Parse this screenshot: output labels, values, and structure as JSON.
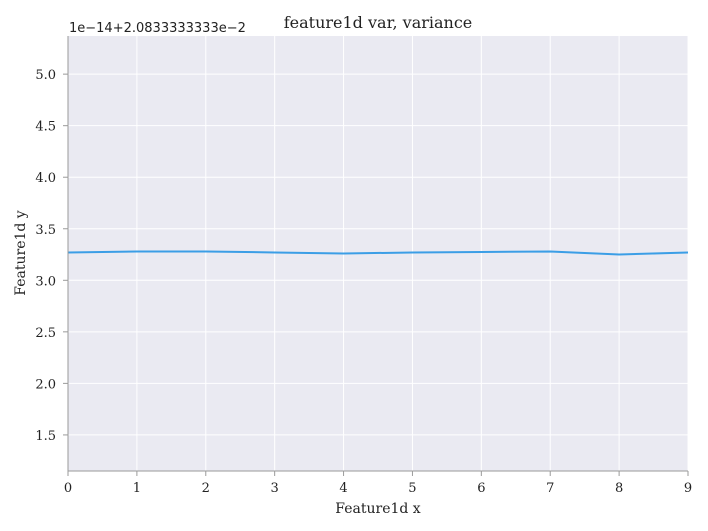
{
  "chart_data": {
    "type": "line",
    "title": "feature1d var, variance",
    "xlabel": "Feature1d x",
    "ylabel": "Feature1d y",
    "offset_label": "1e−14+2.0833333333e−2",
    "xlim": [
      0,
      9
    ],
    "ylim": [
      1.15,
      5.37
    ],
    "xticks": [
      0,
      1,
      2,
      3,
      4,
      5,
      6,
      7,
      8,
      9
    ],
    "xtick_labels": [
      "0",
      "1",
      "2",
      "3",
      "4",
      "5",
      "6",
      "7",
      "8",
      "9"
    ],
    "yticks": [
      1.5,
      2.0,
      2.5,
      3.0,
      3.5,
      4.0,
      4.5,
      5.0
    ],
    "ytick_labels": [
      "1.5",
      "2.0",
      "2.5",
      "3.0",
      "3.5",
      "4.0",
      "4.5",
      "5.0"
    ],
    "grid": true,
    "colors": {
      "plot_background": "#eaeaf2",
      "grid": "#ffffff",
      "line": "#3b9ee6",
      "axis": "#9a9a9a",
      "text": "#222222"
    },
    "series": [
      {
        "x": [
          0,
          1,
          2,
          3,
          4,
          5,
          6,
          7,
          8,
          9
        ],
        "y": [
          3.27,
          3.28,
          3.28,
          3.27,
          3.26,
          3.27,
          3.275,
          3.28,
          3.25,
          3.27
        ]
      }
    ]
  }
}
